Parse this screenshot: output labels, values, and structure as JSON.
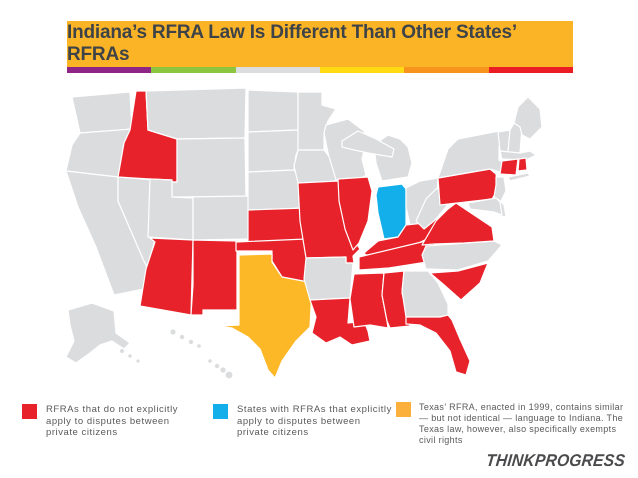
{
  "header": {
    "title": "Indiana’s RFRA Law Is Different Than Other States’ RFRAs",
    "bar_color": "#FBB426",
    "title_color": "#3E4348",
    "stripe": [
      "#8E2486",
      "#8CC63F",
      "#DCDDDE",
      "#FFD912",
      "#F7941E",
      "#EC1C24"
    ]
  },
  "colors": {
    "red": "#E8222A",
    "blue": "#12AFEA",
    "yellow": "#FDB827",
    "gray": "#DBDCDE",
    "border": "#FFFFFF"
  },
  "map": {
    "states": [
      {
        "id": "WA",
        "status": "gray"
      },
      {
        "id": "OR",
        "status": "gray"
      },
      {
        "id": "CA",
        "status": "gray"
      },
      {
        "id": "NV",
        "status": "gray"
      },
      {
        "id": "ID",
        "status": "red"
      },
      {
        "id": "MT",
        "status": "gray"
      },
      {
        "id": "WY",
        "status": "gray"
      },
      {
        "id": "UT",
        "status": "gray"
      },
      {
        "id": "CO",
        "status": "gray"
      },
      {
        "id": "AZ",
        "status": "red"
      },
      {
        "id": "NM",
        "status": "red"
      },
      {
        "id": "ND",
        "status": "gray"
      },
      {
        "id": "SD",
        "status": "gray"
      },
      {
        "id": "NE",
        "status": "gray"
      },
      {
        "id": "KS",
        "status": "red"
      },
      {
        "id": "OK",
        "status": "red"
      },
      {
        "id": "TX",
        "status": "yellow"
      },
      {
        "id": "MN",
        "status": "gray"
      },
      {
        "id": "IA",
        "status": "gray"
      },
      {
        "id": "MO",
        "status": "red"
      },
      {
        "id": "AR",
        "status": "gray"
      },
      {
        "id": "LA",
        "status": "red"
      },
      {
        "id": "WI",
        "status": "gray"
      },
      {
        "id": "IL",
        "status": "red"
      },
      {
        "id": "IN",
        "status": "blue"
      },
      {
        "id": "MI",
        "status": "gray"
      },
      {
        "id": "OH",
        "status": "gray"
      },
      {
        "id": "KY",
        "status": "red"
      },
      {
        "id": "TN",
        "status": "red"
      },
      {
        "id": "MS",
        "status": "red"
      },
      {
        "id": "AL",
        "status": "red"
      },
      {
        "id": "GA",
        "status": "gray"
      },
      {
        "id": "FL",
        "status": "red"
      },
      {
        "id": "SC",
        "status": "red"
      },
      {
        "id": "NC",
        "status": "gray"
      },
      {
        "id": "VA",
        "status": "red"
      },
      {
        "id": "WV",
        "status": "gray"
      },
      {
        "id": "PA",
        "status": "red"
      },
      {
        "id": "NY",
        "status": "gray"
      },
      {
        "id": "VT",
        "status": "gray"
      },
      {
        "id": "NH",
        "status": "gray"
      },
      {
        "id": "ME",
        "status": "gray"
      },
      {
        "id": "MA",
        "status": "gray"
      },
      {
        "id": "CT",
        "status": "red"
      },
      {
        "id": "RI",
        "status": "red"
      },
      {
        "id": "LI",
        "status": "gray"
      },
      {
        "id": "NJ",
        "status": "gray"
      },
      {
        "id": "DE",
        "status": "gray"
      },
      {
        "id": "MD",
        "status": "gray"
      },
      {
        "id": "AK",
        "status": "gray"
      },
      {
        "id": "HI",
        "status": "gray"
      }
    ],
    "categories": {
      "red_states": [
        "Idaho",
        "Arizona",
        "New Mexico",
        "Oklahoma",
        "Kansas",
        "Missouri",
        "Illinois",
        "Kentucky",
        "Tennessee",
        "Virginia",
        "Pennsylvania",
        "Connecticut",
        "Rhode Island",
        "South Carolina",
        "Alabama",
        "Mississippi",
        "Louisiana",
        "Florida"
      ],
      "blue_states": [
        "Indiana"
      ],
      "yellow_states": [
        "Texas"
      ]
    }
  },
  "legend": {
    "items": [
      {
        "color": "#E8222A",
        "text": "RFRAs that do not explicitly apply to disputes between private citizens"
      },
      {
        "color": "#12AFEA",
        "text": "States with RFRAs that explicitly apply to disputes between private citizens"
      },
      {
        "color": "#FBB03C",
        "text": "Texas’ RFRA, enacted in 1999, contains similar — but not identical — language to Indiana. The Texas law, however, also specifically exempts civil rights"
      }
    ]
  },
  "footer": {
    "logo": "THINKPROGRESS"
  }
}
